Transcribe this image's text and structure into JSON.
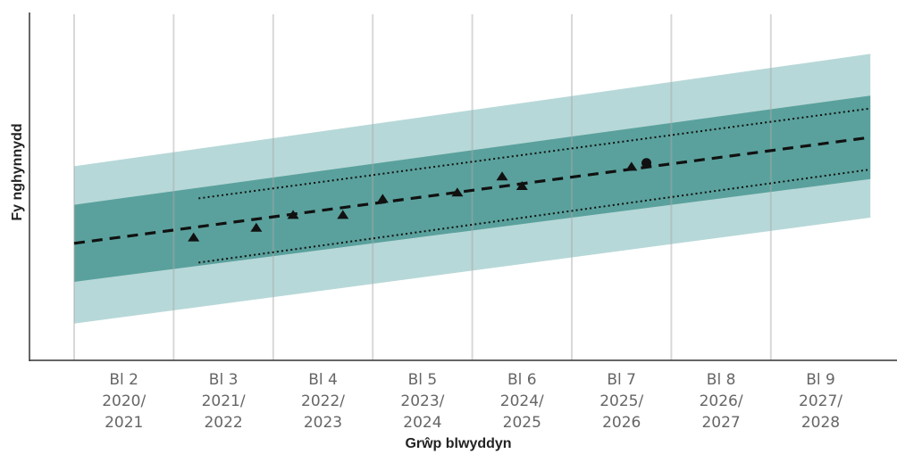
{
  "chart_data": {
    "type": "line",
    "title": "",
    "xlabel": "Grŵp blwyddyn",
    "ylabel": "Fy nghynnydd",
    "categories": [
      {
        "line1": "Bl 2",
        "line2": "2020/",
        "line3": "2021"
      },
      {
        "line1": "Bl 3",
        "line2": "2021/",
        "line3": "2022"
      },
      {
        "line1": "Bl 4",
        "line2": "2022/",
        "line3": "2023"
      },
      {
        "line1": "Bl 5",
        "line2": "2023/",
        "line3": "2024"
      },
      {
        "line1": "Bl 6",
        "line2": "2024/",
        "line3": "2025"
      },
      {
        "line1": "Bl 7",
        "line2": "2025/",
        "line3": "2026"
      },
      {
        "line1": "Bl 8",
        "line2": "2026/",
        "line3": "2027"
      },
      {
        "line1": "Bl 9",
        "line2": "2027/",
        "line3": "2028"
      }
    ],
    "xlim": [
      0,
      8
    ],
    "ylim": [
      0,
      100
    ],
    "y_axis_ticks_shown": false,
    "grid": "vertical",
    "bands": [
      {
        "name": "outer",
        "color": "#b7d8d8",
        "start": {
          "x": 0,
          "lo": 12,
          "hi": 61
        },
        "end": {
          "x": 8,
          "lo": 45,
          "hi": 96
        }
      },
      {
        "name": "inner",
        "color": "#5aa19d",
        "start": {
          "x": 0,
          "lo": 25,
          "hi": 49
        },
        "end": {
          "x": 8,
          "lo": 57,
          "hi": 83
        }
      }
    ],
    "series": [
      {
        "role": "expected_path",
        "style": "dashed",
        "color": "#111111",
        "points": [
          {
            "x": 0,
            "y": 37
          },
          {
            "x": 8,
            "y": 70
          }
        ]
      },
      {
        "role": "upper_range",
        "style": "dotted",
        "color": "#111111",
        "points": [
          {
            "x": 1.25,
            "y": 51
          },
          {
            "x": 8,
            "y": 79
          }
        ]
      },
      {
        "role": "lower_range",
        "style": "dotted",
        "color": "#111111",
        "points": [
          {
            "x": 1.25,
            "y": 31
          },
          {
            "x": 8,
            "y": 60
          }
        ]
      },
      {
        "role": "assessments",
        "marker": "triangle",
        "color": "#111111",
        "points": [
          {
            "x": 1.2,
            "y": 39
          },
          {
            "x": 1.83,
            "y": 42
          },
          {
            "x": 2.2,
            "y": 46
          },
          {
            "x": 2.7,
            "y": 46
          },
          {
            "x": 3.1,
            "y": 51
          },
          {
            "x": 3.85,
            "y": 53
          },
          {
            "x": 4.3,
            "y": 58
          },
          {
            "x": 4.5,
            "y": 55
          },
          {
            "x": 5.6,
            "y": 61
          }
        ]
      },
      {
        "role": "current",
        "marker": "circle",
        "color": "#111111",
        "points": [
          {
            "x": 5.75,
            "y": 62
          }
        ]
      }
    ]
  }
}
